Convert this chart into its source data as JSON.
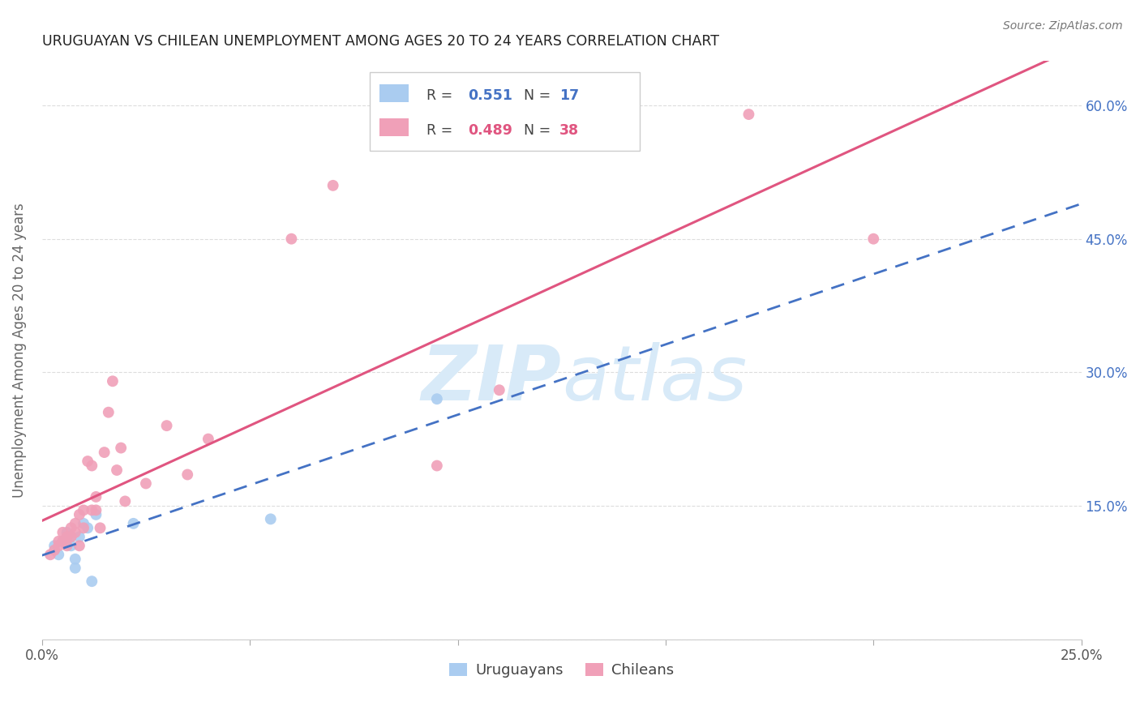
{
  "title": "URUGUAYAN VS CHILEAN UNEMPLOYMENT AMONG AGES 20 TO 24 YEARS CORRELATION CHART",
  "source": "Source: ZipAtlas.com",
  "ylabel": "Unemployment Among Ages 20 to 24 years",
  "xlim": [
    0.0,
    0.25
  ],
  "ylim": [
    0.0,
    0.65
  ],
  "legend_r_uruguayan": "0.551",
  "legend_n_uruguayan": "17",
  "legend_r_chilean": "0.489",
  "legend_n_chilean": "38",
  "uruguayan_color": "#aaccf0",
  "chilean_color": "#f0a0b8",
  "trend_uruguayan_color": "#4472c4",
  "trend_chilean_color": "#e05580",
  "watermark_color": "#d8eaf8",
  "bg_color": "#ffffff",
  "grid_color": "#dddddd",
  "title_color": "#222222",
  "axis_label_color": "#666666",
  "right_ytick_color": "#4472c4",
  "right_ytick_labels": [
    "15.0%",
    "30.0%",
    "45.0%",
    "60.0%"
  ],
  "right_yticks": [
    0.15,
    0.3,
    0.45,
    0.6
  ],
  "uruguayan_x": [
    0.003,
    0.004,
    0.005,
    0.006,
    0.006,
    0.007,
    0.007,
    0.008,
    0.008,
    0.009,
    0.01,
    0.011,
    0.012,
    0.013,
    0.022,
    0.055,
    0.095
  ],
  "uruguayan_y": [
    0.105,
    0.095,
    0.11,
    0.115,
    0.12,
    0.105,
    0.115,
    0.08,
    0.09,
    0.115,
    0.13,
    0.125,
    0.065,
    0.14,
    0.13,
    0.135,
    0.27
  ],
  "chilean_x": [
    0.002,
    0.003,
    0.004,
    0.004,
    0.005,
    0.005,
    0.006,
    0.006,
    0.007,
    0.007,
    0.008,
    0.008,
    0.009,
    0.009,
    0.01,
    0.01,
    0.011,
    0.012,
    0.012,
    0.013,
    0.013,
    0.014,
    0.015,
    0.016,
    0.017,
    0.018,
    0.019,
    0.02,
    0.025,
    0.03,
    0.035,
    0.04,
    0.06,
    0.07,
    0.095,
    0.11,
    0.17,
    0.2
  ],
  "chilean_y": [
    0.095,
    0.1,
    0.105,
    0.11,
    0.11,
    0.12,
    0.105,
    0.115,
    0.115,
    0.125,
    0.12,
    0.13,
    0.105,
    0.14,
    0.125,
    0.145,
    0.2,
    0.145,
    0.195,
    0.145,
    0.16,
    0.125,
    0.21,
    0.255,
    0.29,
    0.19,
    0.215,
    0.155,
    0.175,
    0.24,
    0.185,
    0.225,
    0.45,
    0.51,
    0.195,
    0.28,
    0.59,
    0.45
  ]
}
